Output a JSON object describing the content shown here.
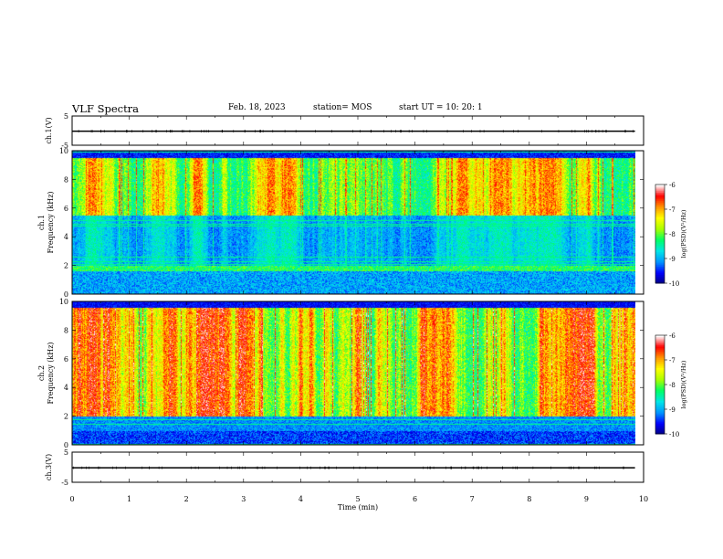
{
  "header": {
    "title": "VLF Spectra",
    "date": "Feb. 18, 2023",
    "station": "station= MOS",
    "start": "start  UT  =   10: 20: 1"
  },
  "chart_data": [
    {
      "type": "line",
      "panel": "ch1-waveform",
      "ylabel": "ch.1(V)",
      "yticks": [
        "5",
        "-5"
      ],
      "ylim": [
        -5,
        5
      ],
      "xlim": [
        0,
        10
      ],
      "series_level": -0.2
    },
    {
      "type": "heatmap",
      "panel": "ch1-spectrogram",
      "ylabel_top": "ch.1",
      "ylabel": "Frequency (kHz)",
      "yticks": [
        "0",
        "2",
        "4",
        "6",
        "8",
        "10"
      ],
      "ylim": [
        0,
        10
      ],
      "xlim": [
        0,
        10
      ],
      "data_end_min": 9.85,
      "colorbar": {
        "label": "log(PSD)(V²/Hz)",
        "ticks": [
          "-6",
          "-7",
          "-8",
          "-9",
          "-10"
        ],
        "range": [
          -10,
          -6
        ]
      }
    },
    {
      "type": "heatmap",
      "panel": "ch2-spectrogram",
      "ylabel_top": "ch.2",
      "ylabel": "Frequency (kHz)",
      "yticks": [
        "0",
        "2",
        "4",
        "6",
        "8",
        "10"
      ],
      "ylim": [
        0,
        10
      ],
      "xlim": [
        0,
        10
      ],
      "data_end_min": 9.85,
      "colorbar": {
        "label": "log(PSD)(V²/Hz)",
        "ticks": [
          "-6",
          "-7",
          "-8",
          "-9",
          "-10"
        ],
        "range": [
          -10,
          -6
        ]
      }
    },
    {
      "type": "line",
      "panel": "ch3-waveform",
      "ylabel": "ch.3(V)",
      "yticks": [
        "5",
        "-5"
      ],
      "ylim": [
        -5,
        5
      ],
      "xlim": [
        0,
        10
      ],
      "series_level": -0.2
    }
  ],
  "xaxis": {
    "label": "Time  (min)",
    "ticks": [
      "0",
      "1",
      "2",
      "3",
      "4",
      "5",
      "6",
      "7",
      "8",
      "9",
      "10"
    ],
    "range": [
      0,
      10
    ]
  },
  "colors": {
    "colormap": [
      "#000080",
      "#0000ff",
      "#0096ff",
      "#00e6e6",
      "#00ff64",
      "#aaff00",
      "#ffff00",
      "#ff9600",
      "#ff0000",
      "#ffffff"
    ],
    "background": "#ffffff",
    "axis": "#000000"
  }
}
